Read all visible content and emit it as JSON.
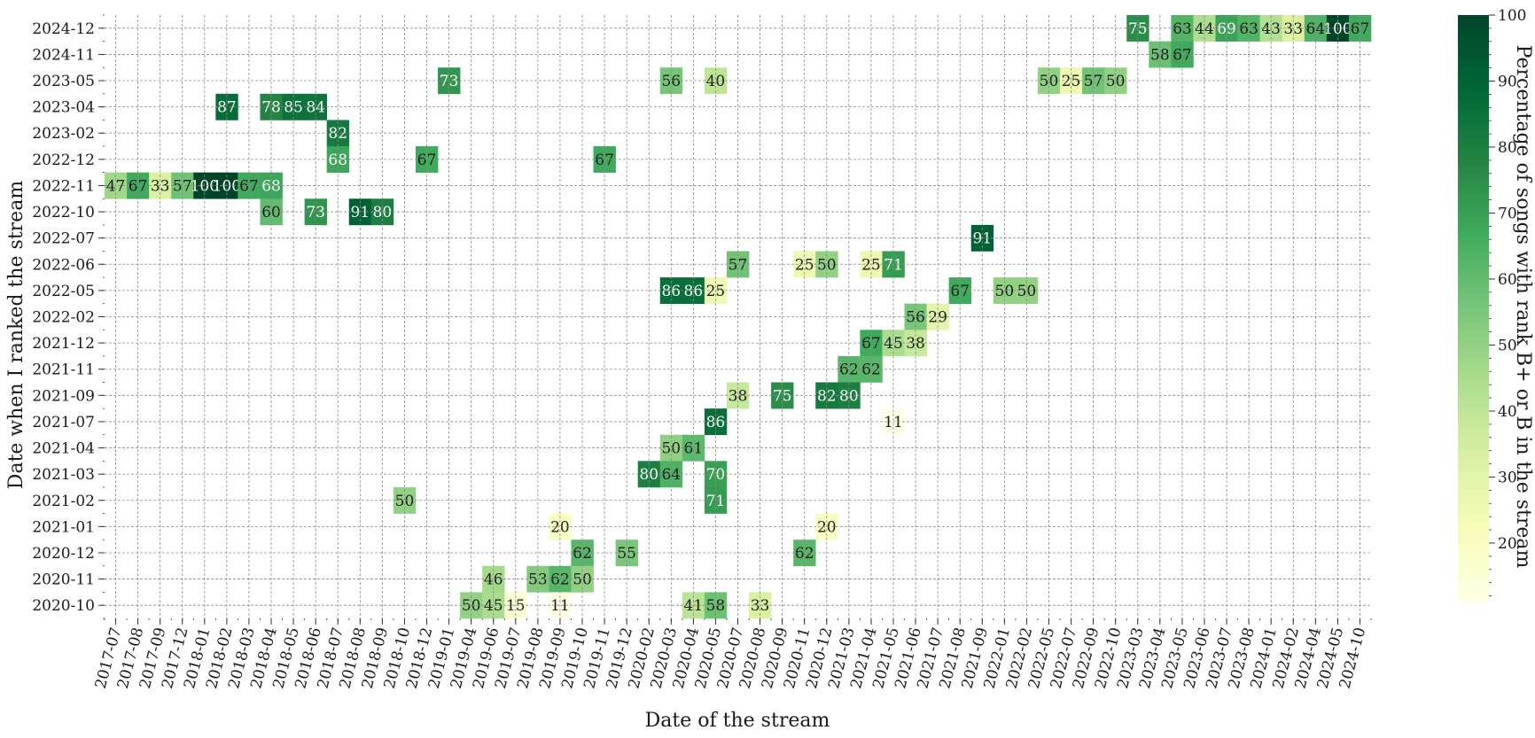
{
  "chart_data": {
    "type": "heatmap",
    "title": "",
    "xlabel": "Date of the stream",
    "ylabel": "Date when I ranked the stream",
    "x": [
      "2017-07",
      "2017-08",
      "2017-09",
      "2017-12",
      "2018-01",
      "2018-02",
      "2018-03",
      "2018-04",
      "2018-05",
      "2018-06",
      "2018-07",
      "2018-08",
      "2018-09",
      "2018-10",
      "2018-12",
      "2019-01",
      "2019-04",
      "2019-06",
      "2019-07",
      "2019-08",
      "2019-09",
      "2019-10",
      "2019-11",
      "2019-12",
      "2020-02",
      "2020-03",
      "2020-04",
      "2020-05",
      "2020-07",
      "2020-08",
      "2020-09",
      "2020-11",
      "2020-12",
      "2021-03",
      "2021-04",
      "2021-05",
      "2021-06",
      "2021-07",
      "2021-08",
      "2021-09",
      "2022-01",
      "2022-02",
      "2022-05",
      "2022-07",
      "2022-09",
      "2022-10",
      "2023-03",
      "2023-04",
      "2023-05",
      "2023-06",
      "2023-07",
      "2023-08",
      "2024-01",
      "2024-02",
      "2024-04",
      "2024-05",
      "2024-10"
    ],
    "y": [
      "2024-12",
      "2024-11",
      "2023-05",
      "2023-04",
      "2023-02",
      "2022-12",
      "2022-11",
      "2022-10",
      "2022-07",
      "2022-06",
      "2022-05",
      "2022-02",
      "2021-12",
      "2021-11",
      "2021-09",
      "2021-07",
      "2021-04",
      "2021-03",
      "2021-02",
      "2021-01",
      "2020-12",
      "2020-11",
      "2020-10"
    ],
    "cells": [
      {
        "x": "2023-03",
        "y": "2024-12",
        "v": 75
      },
      {
        "x": "2023-05",
        "y": "2024-12",
        "v": 63
      },
      {
        "x": "2023-06",
        "y": "2024-12",
        "v": 44
      },
      {
        "x": "2023-07",
        "y": "2024-12",
        "v": 69
      },
      {
        "x": "2023-08",
        "y": "2024-12",
        "v": 63
      },
      {
        "x": "2024-01",
        "y": "2024-12",
        "v": 43
      },
      {
        "x": "2024-02",
        "y": "2024-12",
        "v": 33
      },
      {
        "x": "2024-04",
        "y": "2024-12",
        "v": 64
      },
      {
        "x": "2024-05",
        "y": "2024-12",
        "v": 100
      },
      {
        "x": "2024-10",
        "y": "2024-12",
        "v": 67
      },
      {
        "x": "2023-04",
        "y": "2024-11",
        "v": 58
      },
      {
        "x": "2023-05",
        "y": "2024-11",
        "v": 67
      },
      {
        "x": "2019-01",
        "y": "2023-05",
        "v": 73
      },
      {
        "x": "2020-03",
        "y": "2023-05",
        "v": 56
      },
      {
        "x": "2020-05",
        "y": "2023-05",
        "v": 40
      },
      {
        "x": "2022-05",
        "y": "2023-05",
        "v": 50
      },
      {
        "x": "2022-07",
        "y": "2023-05",
        "v": 25
      },
      {
        "x": "2022-09",
        "y": "2023-05",
        "v": 57
      },
      {
        "x": "2022-10",
        "y": "2023-05",
        "v": 50
      },
      {
        "x": "2018-02",
        "y": "2023-04",
        "v": 87
      },
      {
        "x": "2018-04",
        "y": "2023-04",
        "v": 78
      },
      {
        "x": "2018-05",
        "y": "2023-04",
        "v": 85
      },
      {
        "x": "2018-06",
        "y": "2023-04",
        "v": 84
      },
      {
        "x": "2018-07",
        "y": "2023-02",
        "v": 82
      },
      {
        "x": "2018-07",
        "y": "2022-12",
        "v": 68
      },
      {
        "x": "2018-12",
        "y": "2022-12",
        "v": 67
      },
      {
        "x": "2019-11",
        "y": "2022-12",
        "v": 67
      },
      {
        "x": "2017-07",
        "y": "2022-11",
        "v": 47
      },
      {
        "x": "2017-08",
        "y": "2022-11",
        "v": 67
      },
      {
        "x": "2017-09",
        "y": "2022-11",
        "v": 33
      },
      {
        "x": "2017-12",
        "y": "2022-11",
        "v": 57
      },
      {
        "x": "2018-01",
        "y": "2022-11",
        "v": 100
      },
      {
        "x": "2018-02",
        "y": "2022-11",
        "v": 100
      },
      {
        "x": "2018-03",
        "y": "2022-11",
        "v": 67
      },
      {
        "x": "2018-04",
        "y": "2022-11",
        "v": 68
      },
      {
        "x": "2018-04",
        "y": "2022-10",
        "v": 60
      },
      {
        "x": "2018-06",
        "y": "2022-10",
        "v": 73
      },
      {
        "x": "2018-08",
        "y": "2022-10",
        "v": 91
      },
      {
        "x": "2018-09",
        "y": "2022-10",
        "v": 80
      },
      {
        "x": "2021-09",
        "y": "2022-07",
        "v": 91
      },
      {
        "x": "2020-07",
        "y": "2022-06",
        "v": 57
      },
      {
        "x": "2020-11",
        "y": "2022-06",
        "v": 25
      },
      {
        "x": "2020-12",
        "y": "2022-06",
        "v": 50
      },
      {
        "x": "2021-04",
        "y": "2022-06",
        "v": 25
      },
      {
        "x": "2021-05",
        "y": "2022-06",
        "v": 71
      },
      {
        "x": "2020-03",
        "y": "2022-05",
        "v": 86
      },
      {
        "x": "2020-04",
        "y": "2022-05",
        "v": 86
      },
      {
        "x": "2020-05",
        "y": "2022-05",
        "v": 25
      },
      {
        "x": "2021-08",
        "y": "2022-05",
        "v": 67
      },
      {
        "x": "2022-01",
        "y": "2022-05",
        "v": 50
      },
      {
        "x": "2022-02",
        "y": "2022-05",
        "v": 50
      },
      {
        "x": "2021-06",
        "y": "2022-02",
        "v": 56
      },
      {
        "x": "2021-07",
        "y": "2022-02",
        "v": 29
      },
      {
        "x": "2021-04",
        "y": "2021-12",
        "v": 67
      },
      {
        "x": "2021-05",
        "y": "2021-12",
        "v": 45
      },
      {
        "x": "2021-06",
        "y": "2021-12",
        "v": 38
      },
      {
        "x": "2021-03",
        "y": "2021-11",
        "v": 62
      },
      {
        "x": "2021-04",
        "y": "2021-11",
        "v": 62
      },
      {
        "x": "2020-07",
        "y": "2021-09",
        "v": 38
      },
      {
        "x": "2020-09",
        "y": "2021-09",
        "v": 75
      },
      {
        "x": "2020-12",
        "y": "2021-09",
        "v": 82
      },
      {
        "x": "2021-03",
        "y": "2021-09",
        "v": 80
      },
      {
        "x": "2020-05",
        "y": "2021-07",
        "v": 86
      },
      {
        "x": "2021-05",
        "y": "2021-07",
        "v": 11
      },
      {
        "x": "2020-03",
        "y": "2021-04",
        "v": 50
      },
      {
        "x": "2020-04",
        "y": "2021-04",
        "v": 61
      },
      {
        "x": "2020-02",
        "y": "2021-03",
        "v": 80
      },
      {
        "x": "2020-03",
        "y": "2021-03",
        "v": 64
      },
      {
        "x": "2020-05",
        "y": "2021-03",
        "v": 70
      },
      {
        "x": "2018-10",
        "y": "2021-02",
        "v": 50
      },
      {
        "x": "2020-05",
        "y": "2021-02",
        "v": 71
      },
      {
        "x": "2019-09",
        "y": "2021-01",
        "v": 20
      },
      {
        "x": "2020-12",
        "y": "2021-01",
        "v": 20
      },
      {
        "x": "2019-10",
        "y": "2020-12",
        "v": 62
      },
      {
        "x": "2019-12",
        "y": "2020-12",
        "v": 55
      },
      {
        "x": "2020-11",
        "y": "2020-12",
        "v": 62
      },
      {
        "x": "2019-06",
        "y": "2020-11",
        "v": 46
      },
      {
        "x": "2019-08",
        "y": "2020-11",
        "v": 53
      },
      {
        "x": "2019-09",
        "y": "2020-11",
        "v": 62
      },
      {
        "x": "2019-10",
        "y": "2020-11",
        "v": 50
      },
      {
        "x": "2019-04",
        "y": "2020-10",
        "v": 50
      },
      {
        "x": "2019-06",
        "y": "2020-10",
        "v": 45
      },
      {
        "x": "2019-07",
        "y": "2020-10",
        "v": 15
      },
      {
        "x": "2019-09",
        "y": "2020-10",
        "v": 11
      },
      {
        "x": "2020-04",
        "y": "2020-10",
        "v": 41
      },
      {
        "x": "2020-05",
        "y": "2020-10",
        "v": 58
      },
      {
        "x": "2020-08",
        "y": "2020-10",
        "v": 33
      }
    ],
    "colorbar": {
      "label": "Percentage of songs with rank B+ or B in the stream",
      "min": 11,
      "max": 100,
      "ticks": [
        20,
        30,
        40,
        50,
        60,
        70,
        80,
        90,
        100
      ],
      "colormap": "YlGn",
      "colors": [
        "#ffffe5",
        "#f7fcb9",
        "#d9f0a3",
        "#addd8e",
        "#78c679",
        "#41ab5d",
        "#238443",
        "#006837",
        "#004529"
      ]
    },
    "grid": true
  }
}
